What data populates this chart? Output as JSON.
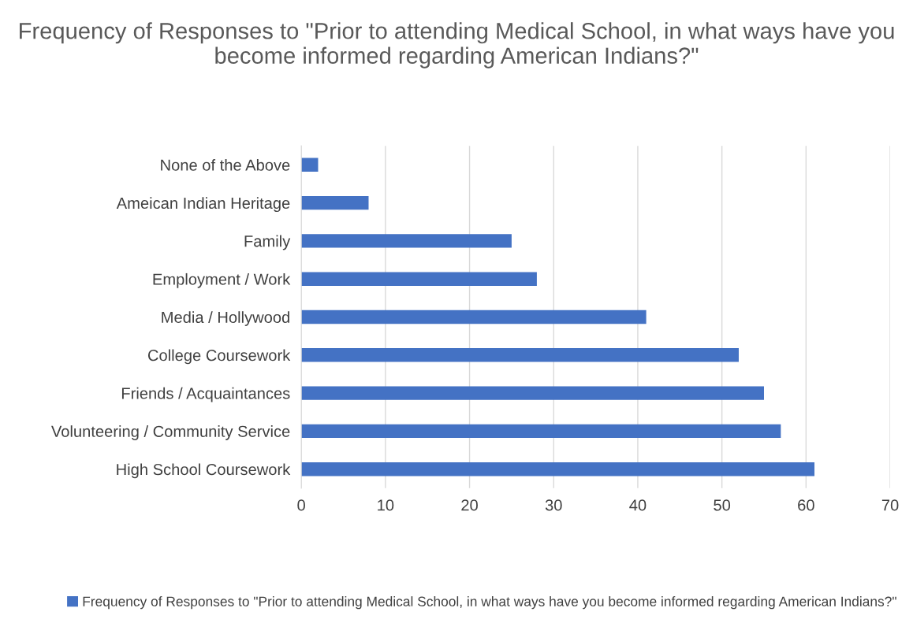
{
  "chart_data": {
    "type": "bar",
    "orientation": "horizontal",
    "title": "Frequency of Responses to \"Prior to attending Medical School, in what ways have you become informed regarding American Indians?\"",
    "categories": [
      "None of the Above",
      "Ameican Indian Heritage",
      "Family",
      "Employment / Work",
      "Media / Hollywood",
      "College Coursework",
      "Friends / Acquaintances",
      "Volunteering / Community Service",
      "High School Coursework"
    ],
    "series": [
      {
        "name": "Frequency of Responses to \"Prior to attending Medical School, in what ways have you become informed regarding American Indians?\"",
        "color": "#4472c4",
        "values": [
          2,
          8,
          25,
          28,
          41,
          52,
          55,
          57,
          61
        ]
      }
    ],
    "xlim": [
      0,
      70
    ],
    "xticks": [
      0,
      10,
      20,
      30,
      40,
      50,
      60,
      70
    ],
    "grid": "x",
    "legend": "bottom"
  }
}
